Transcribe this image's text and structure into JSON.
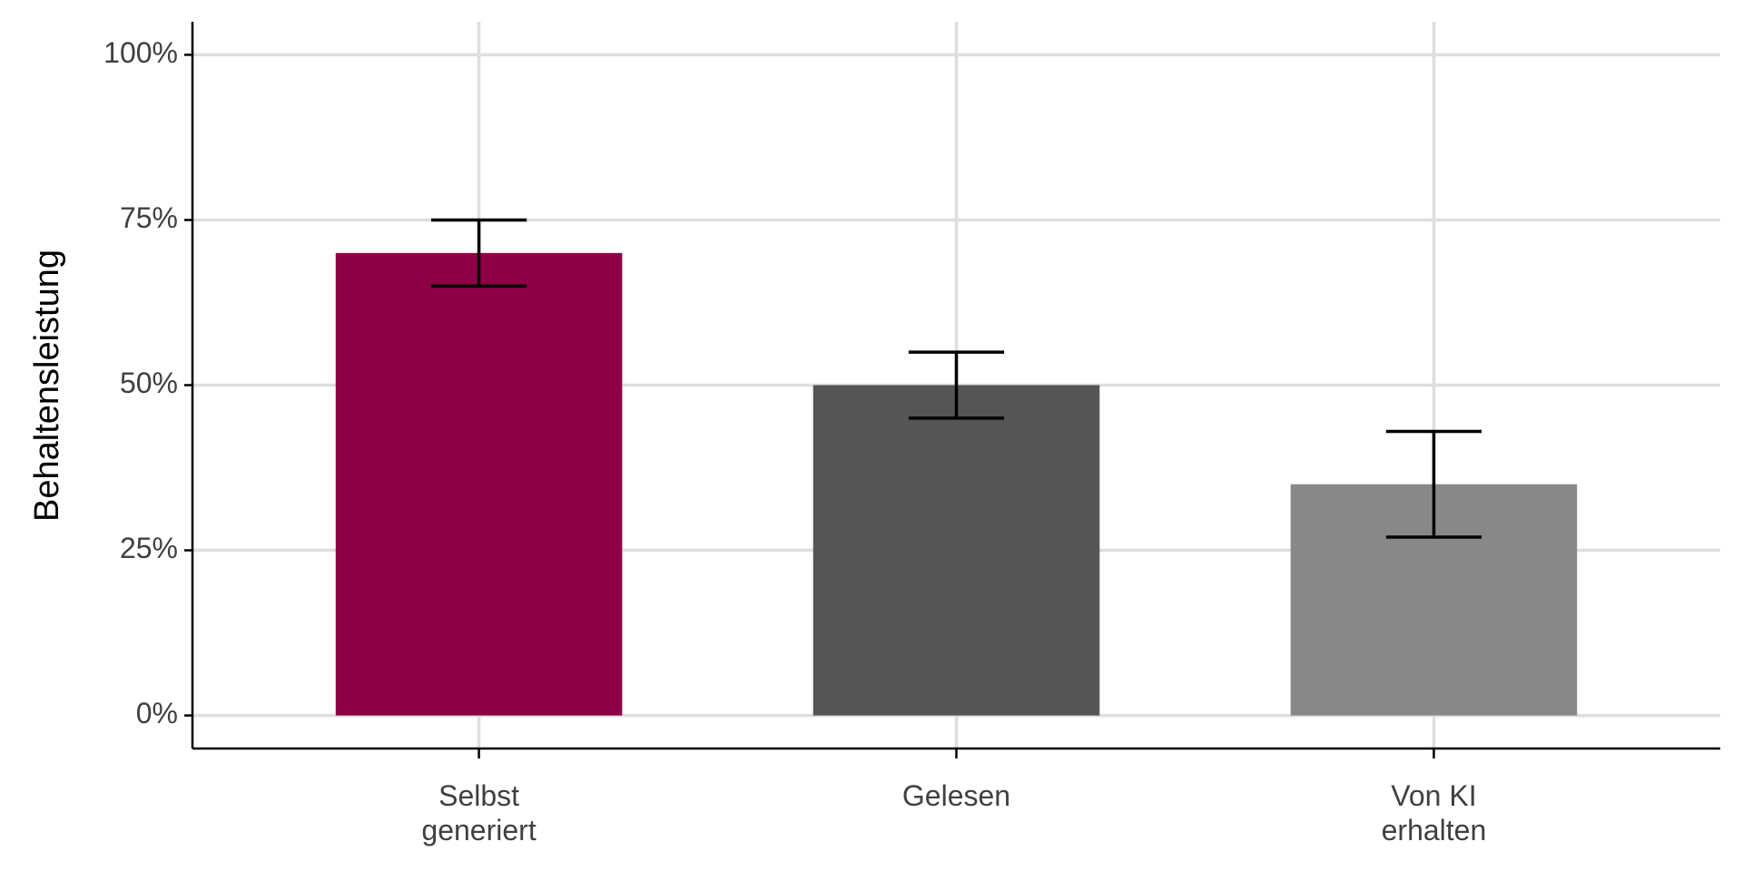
{
  "chart_data": {
    "type": "bar",
    "y_label": "Behaltensleistung",
    "categories": [
      "Selbst\ngeneriert",
      "Gelesen",
      "Von KI\nerhalten"
    ],
    "values": [
      70,
      50,
      35
    ],
    "errors": [
      5,
      5,
      8
    ],
    "colors": [
      "#8e0045",
      "#555555",
      "#888888"
    ],
    "ylim": [
      -5,
      105
    ],
    "yticks": [
      {
        "value": 0,
        "label": "0%"
      },
      {
        "value": 25,
        "label": "25%"
      },
      {
        "value": 50,
        "label": "50%"
      },
      {
        "value": 75,
        "label": "75%"
      },
      {
        "value": 100,
        "label": "100%"
      }
    ],
    "grid": true
  }
}
